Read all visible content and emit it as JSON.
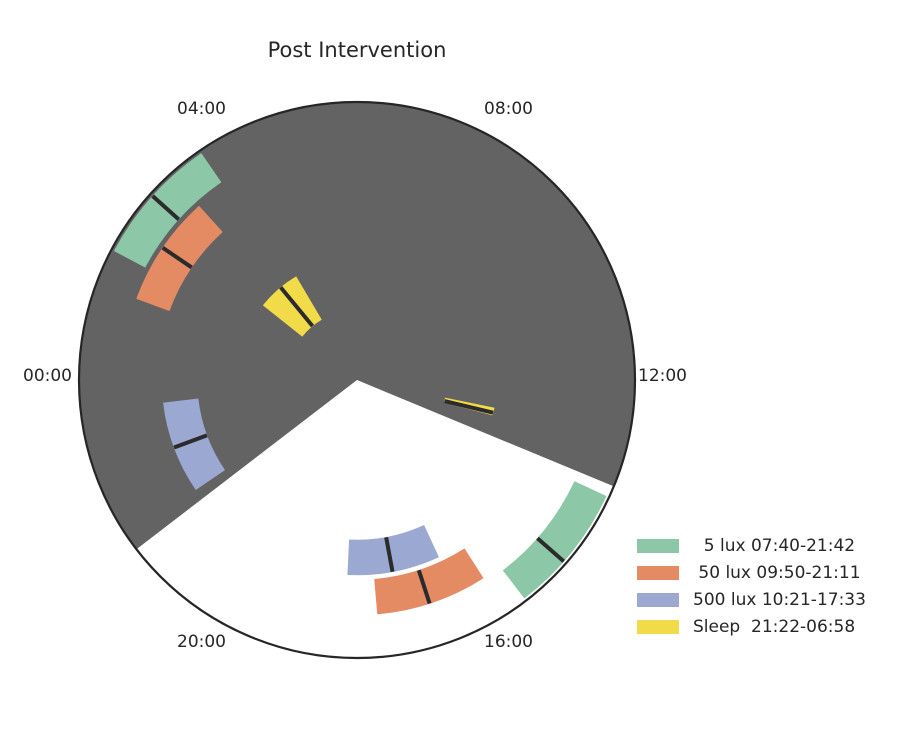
{
  "chart_data": {
    "type": "polar-clock",
    "title": "Post Intervention",
    "period_hours": 24,
    "orientation": "00:00 at left, clockwise",
    "tick_labels": [
      "04:00",
      "08:00",
      "12:00",
      "16:00",
      "20:00",
      "00:00"
    ],
    "tick_hours": [
      4,
      8,
      12,
      16,
      20,
      0
    ],
    "dark_period": {
      "start": 15.5,
      "end": 7.5,
      "color": "#636363"
    },
    "series": [
      {
        "name": "5 lux 07:40-21:42",
        "label": "  5 lux 07:40-21:42",
        "start": 7.667,
        "end": 21.7,
        "mid": 8.75,
        "ring": "outer",
        "color": "#8cc7a7"
      },
      {
        "name": "50 lux 09:50-21:11",
        "label": " 50 lux 09:50-21:11",
        "start": 9.833,
        "end": 21.183,
        "mid": 10.8,
        "ring": "middle",
        "color": "#e58b64"
      },
      {
        "name": "500 lux 10:21-17:33",
        "label": "500 lux 10:21-17:33",
        "start": 10.35,
        "end": 17.55,
        "mid": 11.3,
        "ring": "inner",
        "color": "#9ba8d2"
      },
      {
        "name": "Sleep 21:22-06:58",
        "label": "Sleep  21:22-06:58",
        "start": 21.367,
        "end": 6.967,
        "mid": 6.9,
        "ring": "center",
        "color": "#f2db48"
      }
    ],
    "legend_position": "bottom-right"
  }
}
